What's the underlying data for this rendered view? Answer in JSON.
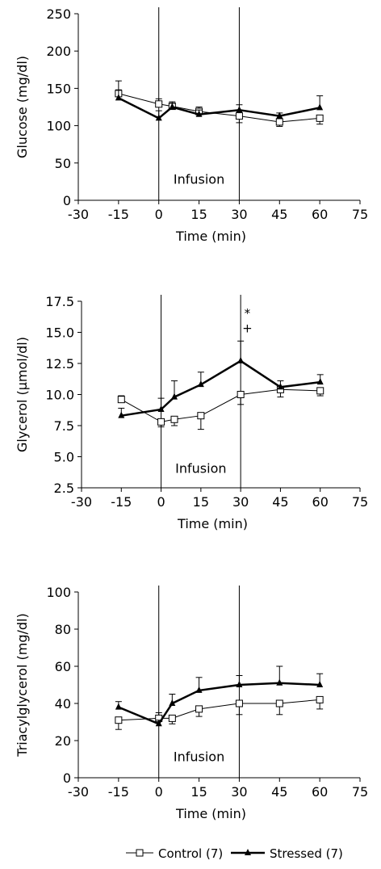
{
  "chart_data": [
    {
      "type": "line",
      "xlabel": "Time (min)",
      "ylabel": "Glucose (mg/dl)",
      "xlim": [
        -30,
        75
      ],
      "ylim": [
        0,
        250
      ],
      "xticks": [
        -30,
        -15,
        0,
        15,
        30,
        45,
        60,
        75
      ],
      "yticks": [
        0,
        50,
        100,
        150,
        200,
        250
      ],
      "ytick_labels": [
        "0",
        "50",
        "100",
        "150",
        "200",
        "250"
      ],
      "vlines": [
        0,
        30
      ],
      "annotation": "Infusion",
      "annotation_x": 15,
      "annotation_y": 22,
      "marks": [],
      "series": [
        {
          "name": "Control (7)",
          "marker": "open-square",
          "x": [
            -15,
            0,
            5,
            15,
            30,
            45,
            60
          ],
          "y": [
            143,
            129,
            126,
            119,
            113,
            105,
            110
          ],
          "err": [
            17,
            7,
            6,
            6,
            9,
            6,
            8
          ]
        },
        {
          "name": "Stressed (7)",
          "marker": "filled-triangle",
          "x": [
            -15,
            0,
            5,
            15,
            30,
            45,
            60
          ],
          "y": [
            137,
            110,
            125,
            115,
            121,
            113,
            124
          ],
          "err": [
            11,
            10,
            5,
            6,
            7,
            4,
            16
          ]
        }
      ]
    },
    {
      "type": "line",
      "xlabel": "Time (min)",
      "ylabel": "Glycerol (µmol/dl)",
      "xlim": [
        -30,
        75
      ],
      "ylim": [
        2.5,
        17.5
      ],
      "xticks": [
        -30,
        -15,
        0,
        15,
        30,
        45,
        60,
        75
      ],
      "yticks": [
        2.5,
        5.0,
        7.5,
        10.0,
        12.5,
        15.0,
        17.5
      ],
      "ytick_labels": [
        "2.5",
        "5.0",
        "7.5",
        "10.0",
        "12.5",
        "15.0",
        "17.5"
      ],
      "vlines": [
        0,
        30
      ],
      "annotation": "Infusion",
      "annotation_x": 15,
      "annotation_y": 3.7,
      "marks": [
        {
          "text": "*",
          "x": 32.5,
          "y": 16.2
        },
        {
          "text": "+",
          "x": 32.5,
          "y": 15.0
        }
      ],
      "series": [
        {
          "name": "Control (7)",
          "marker": "open-square",
          "x": [
            -15,
            0,
            5,
            15,
            30,
            45,
            60
          ],
          "y": [
            9.6,
            7.8,
            8.0,
            8.3,
            10.0,
            10.4,
            10.3
          ],
          "err": [
            0.3,
            0.4,
            0.5,
            1.1,
            0.8,
            0.6,
            0.4
          ]
        },
        {
          "name": "Stressed (7)",
          "marker": "filled-triangle",
          "x": [
            -15,
            0,
            5,
            15,
            30,
            45,
            60
          ],
          "y": [
            8.3,
            8.8,
            9.8,
            10.8,
            12.7,
            10.6,
            11.0
          ],
          "err": [
            0.6,
            0.9,
            1.3,
            1.0,
            1.6,
            0.5,
            0.6
          ]
        }
      ]
    },
    {
      "type": "line",
      "xlabel": "Time (min)",
      "ylabel": "Triacylglycerol (mg/dl)",
      "xlim": [
        -30,
        75
      ],
      "ylim": [
        0,
        100
      ],
      "xticks": [
        -30,
        -15,
        0,
        15,
        30,
        45,
        60,
        75
      ],
      "yticks": [
        0,
        20,
        40,
        60,
        80,
        100
      ],
      "ytick_labels": [
        "0",
        "20",
        "40",
        "60",
        "80",
        "100"
      ],
      "vlines": [
        0,
        30
      ],
      "annotation": "Infusion",
      "annotation_x": 15,
      "annotation_y": 9,
      "marks": [],
      "series": [
        {
          "name": "Control (7)",
          "marker": "open-square",
          "x": [
            -15,
            0,
            5,
            15,
            30,
            45,
            60
          ],
          "y": [
            31,
            32,
            32,
            37,
            40,
            40,
            42
          ],
          "err": [
            5,
            3,
            3,
            4,
            6,
            6,
            5
          ]
        },
        {
          "name": "Stressed (7)",
          "marker": "filled-triangle",
          "x": [
            -15,
            0,
            5,
            15,
            30,
            45,
            60
          ],
          "y": [
            38,
            29,
            40,
            47,
            50,
            51,
            50
          ],
          "err": [
            3,
            2,
            5,
            7,
            5,
            9,
            6
          ]
        }
      ]
    }
  ],
  "legend": [
    {
      "label": "Control (7)",
      "marker": "open-square"
    },
    {
      "label": "Stressed (7)",
      "marker": "filled-triangle"
    }
  ]
}
